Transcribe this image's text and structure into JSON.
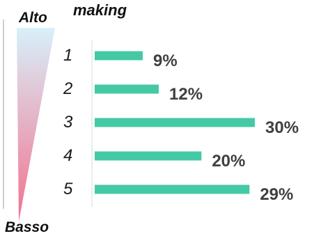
{
  "chart_data": {
    "type": "bar",
    "orientation": "horizontal",
    "title": "making",
    "scale_top_label": "Alto",
    "scale_bottom_label": "Basso",
    "categories": [
      "1",
      "2",
      "3",
      "4",
      "5"
    ],
    "values": [
      9,
      12,
      30,
      20,
      29
    ],
    "value_labels": [
      "9%",
      "12%",
      "30%",
      "20%",
      "29%"
    ],
    "value_unit": "%",
    "xlim": [
      0,
      30
    ],
    "grid": false,
    "legend": "none",
    "colors": {
      "bar": "#45C9A4",
      "value_label": "#404040",
      "category_label": "#1A1A1A",
      "axis": "#D9D9D9",
      "gradient_top": "#D8F0FA",
      "gradient_bottom": "#F2708E",
      "frame": "#BFBFBF"
    }
  }
}
